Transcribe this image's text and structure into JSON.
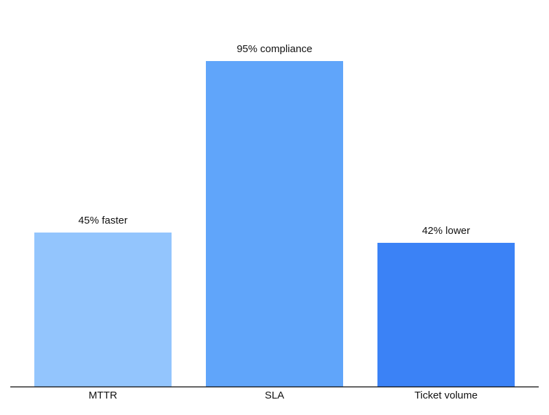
{
  "chart_data": {
    "type": "bar",
    "categories": [
      "MTTR",
      "SLA",
      "Ticket volume"
    ],
    "values": [
      45,
      95,
      42
    ],
    "data_labels": [
      "45% faster",
      "95% compliance",
      "42% lower"
    ],
    "colors": [
      "#93c5fd",
      "#60a5fa",
      "#3b82f6"
    ],
    "title": "",
    "xlabel": "",
    "ylabel": "",
    "ylim": [
      0,
      100
    ],
    "grid": false,
    "y_axis_visible": false
  }
}
